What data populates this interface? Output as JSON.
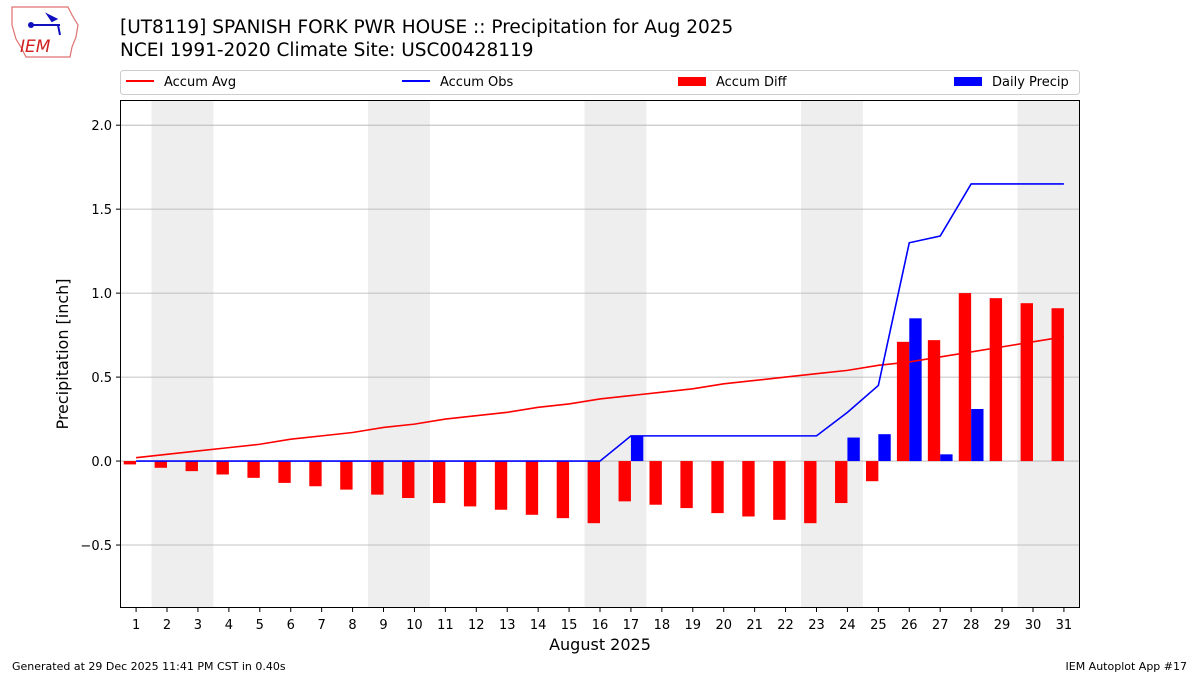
{
  "header": {
    "title_line1": "[UT8119] SPANISH FORK PWR HOUSE :: Precipitation for Aug 2025",
    "title_line2": "NCEI 1991-2020 Climate Site: USC00428119",
    "logo_text": "IEM"
  },
  "footer": {
    "generated": "Generated at 29 Dec 2025 11:41 PM CST in 0.40s",
    "app": "IEM Autoplot App #17"
  },
  "chart_data": {
    "type": "bar+line",
    "xlabel": "August 2025",
    "ylabel": "Precipitation [inch]",
    "ylim": [
      -0.875,
      2.15
    ],
    "xlim": [
      0.48,
      31.52
    ],
    "yticks": [
      -0.5,
      0.0,
      0.5,
      1.0,
      1.5,
      2.0
    ],
    "ytick_labels": [
      "−0.5",
      "0.0",
      "0.5",
      "1.0",
      "1.5",
      "2.0"
    ],
    "grid": "horizontal",
    "legend_placement": "top",
    "days": [
      1,
      2,
      3,
      4,
      5,
      6,
      7,
      8,
      9,
      10,
      11,
      12,
      13,
      14,
      15,
      16,
      17,
      18,
      19,
      20,
      21,
      22,
      23,
      24,
      25,
      26,
      27,
      28,
      29,
      30,
      31
    ],
    "weekend_shading": [
      [
        2,
        3
      ],
      [
        9,
        10
      ],
      [
        16,
        17
      ],
      [
        23,
        24
      ],
      [
        30,
        31
      ]
    ],
    "series": [
      {
        "name": "Accum Avg",
        "kind": "line",
        "color": "#ff0000",
        "values": [
          0.02,
          0.04,
          0.06,
          0.08,
          0.1,
          0.13,
          0.15,
          0.17,
          0.2,
          0.22,
          0.25,
          0.27,
          0.29,
          0.32,
          0.34,
          0.37,
          0.39,
          0.41,
          0.43,
          0.46,
          0.48,
          0.5,
          0.52,
          0.54,
          0.57,
          0.59,
          0.62,
          0.65,
          0.68,
          0.71,
          0.74
        ]
      },
      {
        "name": "Accum Obs",
        "kind": "line",
        "color": "#0000ff",
        "values": [
          0,
          0,
          0,
          0,
          0,
          0,
          0,
          0,
          0,
          0,
          0,
          0,
          0,
          0,
          0,
          0,
          0.15,
          0.15,
          0.15,
          0.15,
          0.15,
          0.15,
          0.15,
          0.29,
          0.45,
          1.3,
          1.34,
          1.65,
          1.65,
          1.65,
          1.65
        ]
      },
      {
        "name": "Accum Diff",
        "kind": "bar",
        "color": "#ff0000",
        "values": [
          -0.02,
          -0.04,
          -0.06,
          -0.08,
          -0.1,
          -0.13,
          -0.15,
          -0.17,
          -0.2,
          -0.22,
          -0.25,
          -0.27,
          -0.29,
          -0.32,
          -0.34,
          -0.37,
          -0.24,
          -0.26,
          -0.28,
          -0.31,
          -0.33,
          -0.35,
          -0.37,
          -0.25,
          -0.12,
          0.71,
          0.72,
          1.0,
          0.97,
          0.94,
          0.91
        ]
      },
      {
        "name": "Daily Precip",
        "kind": "bar",
        "color": "#0000ff",
        "values": [
          0,
          0,
          0,
          0,
          0,
          0,
          0,
          0,
          0,
          0,
          0,
          0,
          0,
          0,
          0,
          0,
          0.15,
          0,
          0,
          0,
          0,
          0,
          0,
          0.14,
          0.16,
          0.85,
          0.04,
          0.31,
          0,
          0,
          0
        ]
      }
    ]
  }
}
